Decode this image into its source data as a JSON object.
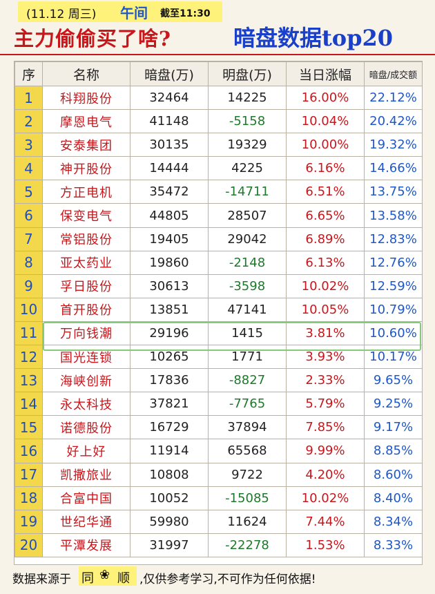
{
  "header": {
    "date": "(11.12 周三)",
    "session": "午间",
    "cutoff": "截至11:30",
    "title_left": "主力偷偷买了啥?",
    "title_right": "暗盘数据top20"
  },
  "table": {
    "columns": [
      "序",
      "名称",
      "暗盘(万)",
      "明盘(万)",
      "当日涨幅",
      "暗盘/成交额"
    ],
    "rows": [
      {
        "rank": "1",
        "name": "科翔股份",
        "dark": "32464",
        "open": "14225",
        "change": "16.00%",
        "ratio": "22.12%"
      },
      {
        "rank": "2",
        "name": "摩恩电气",
        "dark": "41148",
        "open": "-5158",
        "change": "10.04%",
        "ratio": "20.42%"
      },
      {
        "rank": "3",
        "name": "安泰集团",
        "dark": "30135",
        "open": "19329",
        "change": "10.00%",
        "ratio": "19.32%"
      },
      {
        "rank": "4",
        "name": "神开股份",
        "dark": "14444",
        "open": "4225",
        "change": "6.16%",
        "ratio": "14.66%"
      },
      {
        "rank": "5",
        "name": "方正电机",
        "dark": "35472",
        "open": "-14711",
        "change": "6.51%",
        "ratio": "13.75%"
      },
      {
        "rank": "6",
        "name": "保变电气",
        "dark": "44805",
        "open": "28507",
        "change": "6.65%",
        "ratio": "13.58%"
      },
      {
        "rank": "7",
        "name": "常铝股份",
        "dark": "19405",
        "open": "29042",
        "change": "6.89%",
        "ratio": "12.83%"
      },
      {
        "rank": "8",
        "name": "亚太药业",
        "dark": "19860",
        "open": "-2148",
        "change": "6.13%",
        "ratio": "12.76%"
      },
      {
        "rank": "9",
        "name": "孚日股份",
        "dark": "30613",
        "open": "-3598",
        "change": "10.02%",
        "ratio": "12.59%"
      },
      {
        "rank": "10",
        "name": "首开股份",
        "dark": "13851",
        "open": "47141",
        "change": "10.05%",
        "ratio": "10.79%"
      },
      {
        "rank": "11",
        "name": "万向钱潮",
        "dark": "29196",
        "open": "1415",
        "change": "3.81%",
        "ratio": "10.60%"
      },
      {
        "rank": "12",
        "name": "国光连锁",
        "dark": "10265",
        "open": "1771",
        "change": "3.93%",
        "ratio": "10.17%"
      },
      {
        "rank": "13",
        "name": "海峡创新",
        "dark": "17836",
        "open": "-8827",
        "change": "2.33%",
        "ratio": "9.65%"
      },
      {
        "rank": "14",
        "name": "永太科技",
        "dark": "37821",
        "open": "-7765",
        "change": "5.79%",
        "ratio": "9.25%"
      },
      {
        "rank": "15",
        "name": "诺德股份",
        "dark": "16729",
        "open": "37894",
        "change": "7.85%",
        "ratio": "9.17%"
      },
      {
        "rank": "16",
        "name": "好上好",
        "dark": "11914",
        "open": "65568",
        "change": "9.99%",
        "ratio": "8.85%"
      },
      {
        "rank": "17",
        "name": "凯撒旅业",
        "dark": "10808",
        "open": "9722",
        "change": "4.20%",
        "ratio": "8.60%"
      },
      {
        "rank": "18",
        "name": "合富中国",
        "dark": "10052",
        "open": "-15085",
        "change": "10.02%",
        "ratio": "8.40%"
      },
      {
        "rank": "19",
        "name": "世纪华通",
        "dark": "59980",
        "open": "11624",
        "change": "7.44%",
        "ratio": "8.34%"
      },
      {
        "rank": "20",
        "name": "平潭发展",
        "dark": "31997",
        "open": "-22278",
        "change": "1.53%",
        "ratio": "8.33%"
      }
    ],
    "highlighted_rank": "11"
  },
  "footer": {
    "prefix": "数据来源于",
    "brand_a": "同",
    "brand_icon": "flower-icon",
    "brand_b": "顺",
    "suffix": ",仅供参考学习,不可作为任何依据!"
  },
  "colors": {
    "title_red": "#c9161b",
    "title_blue": "#1a3fc8",
    "negative_green": "#1c7a2a",
    "index_yellow": "#f3d84c",
    "highlight_green": "#86c97b"
  }
}
